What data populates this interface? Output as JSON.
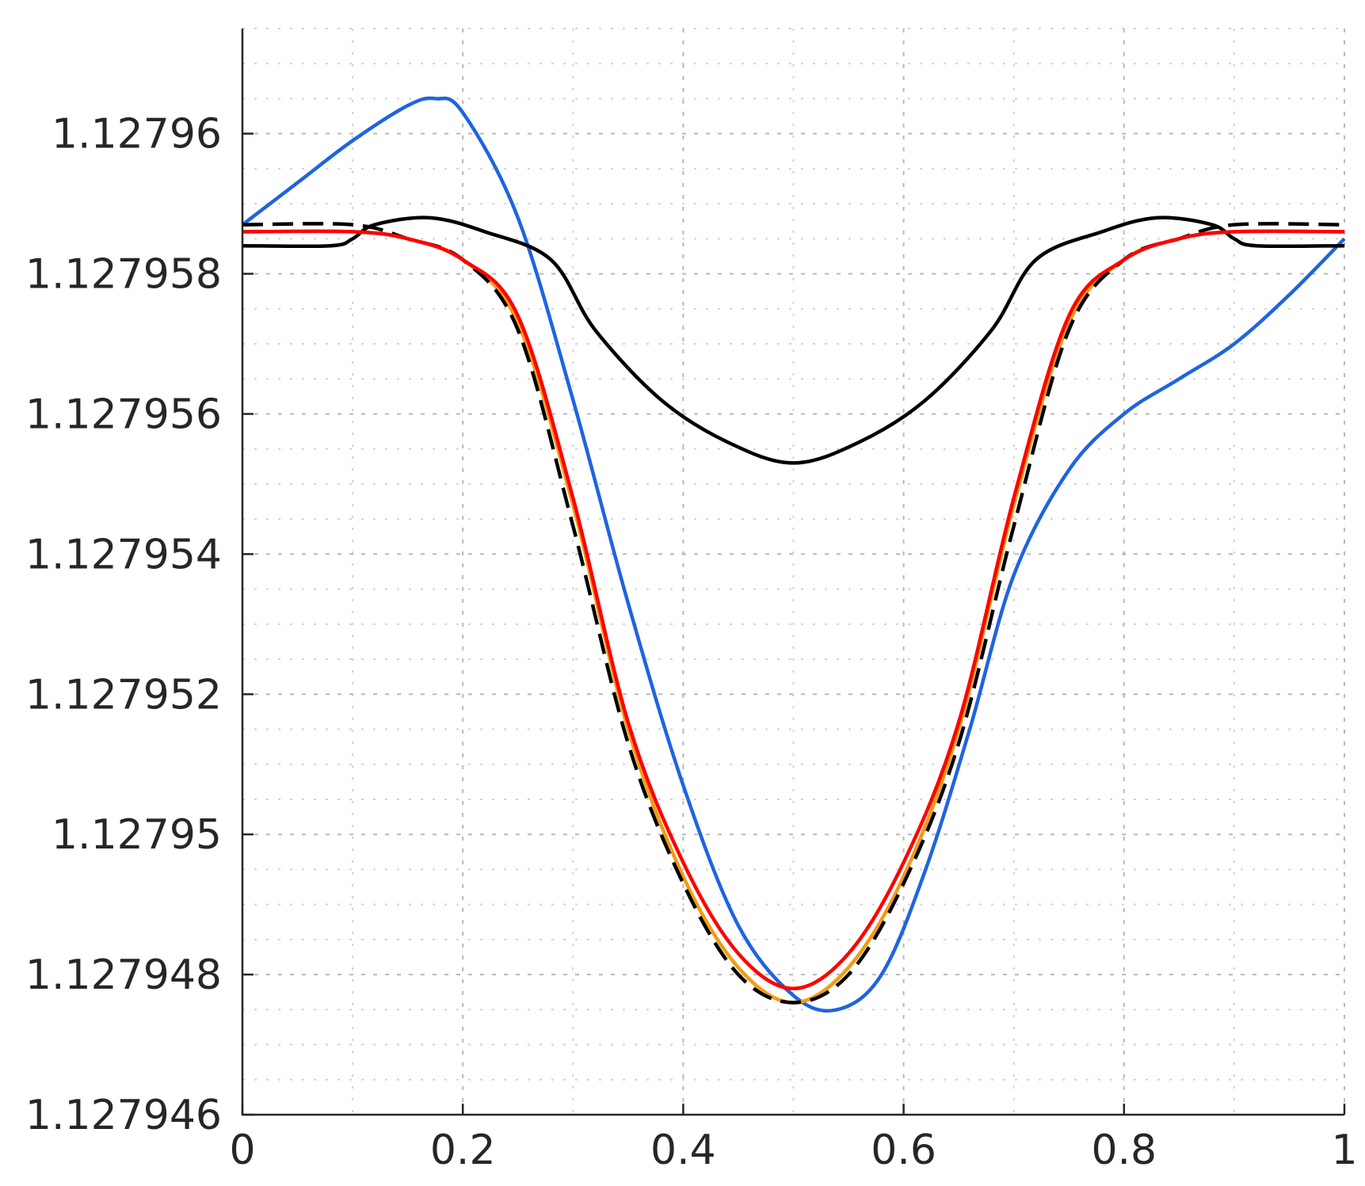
{
  "chart_data": {
    "type": "line",
    "title": "",
    "xlabel": "",
    "ylabel": "",
    "xlim": [
      0,
      1
    ],
    "ylim": [
      1.127946,
      1.1279615
    ],
    "grid": true,
    "minor_grid": true,
    "x_ticks": [
      0,
      0.2,
      0.4,
      0.6,
      0.8,
      1
    ],
    "x_tick_labels": [
      "0",
      "0.2",
      "0.4",
      "0.6",
      "0.8",
      "1"
    ],
    "y_ticks": [
      1.127946,
      1.127948,
      1.12795,
      1.127952,
      1.127954,
      1.127956,
      1.127958,
      1.12796
    ],
    "y_tick_labels": [
      "1.127946",
      "1.127948",
      "1.12795",
      "1.127952",
      "1.127954",
      "1.127956",
      "1.127958",
      "1.12796"
    ],
    "series": [
      {
        "color": "#1f64e0",
        "dash": "solid",
        "x": [
          0,
          0.05,
          0.1,
          0.15,
          0.175,
          0.2,
          0.25,
          0.3,
          0.35,
          0.4,
          0.45,
          0.5,
          0.54,
          0.58,
          0.62,
          0.66,
          0.7,
          0.75,
          0.8,
          0.85,
          0.9,
          0.95,
          1
        ],
        "y": [
          1.1279587,
          1.1279593,
          1.1279599,
          1.1279604,
          1.1279605,
          1.1279603,
          1.1279588,
          1.1279562,
          1.1279533,
          1.1279507,
          1.1279487,
          1.1279477,
          1.1279475,
          1.127948,
          1.1279495,
          1.1279515,
          1.1279537,
          1.1279552,
          1.127956,
          1.1279565,
          1.127957,
          1.1279577,
          1.1279585
        ]
      },
      {
        "color": "#000000",
        "dash": "solid",
        "x": [
          0,
          0.08,
          0.1,
          0.12,
          0.17,
          0.22,
          0.28,
          0.32,
          0.38,
          0.44,
          0.5,
          0.56,
          0.62,
          0.68,
          0.72,
          0.78,
          0.83,
          0.88,
          0.9,
          0.92,
          1
        ],
        "y": [
          1.1279584,
          1.1279584,
          1.1279585,
          1.1279587,
          1.1279588,
          1.1279586,
          1.1279582,
          1.1279572,
          1.1279562,
          1.1279556,
          1.1279553,
          1.1279556,
          1.1279562,
          1.1279572,
          1.1279582,
          1.1279586,
          1.1279588,
          1.1279587,
          1.1279585,
          1.1279584,
          1.1279584
        ]
      },
      {
        "color": "#f39c12",
        "dash": "solid",
        "x": [
          0,
          0.1,
          0.15,
          0.2,
          0.25,
          0.3,
          0.35,
          0.4,
          0.45,
          0.5,
          0.55,
          0.6,
          0.65,
          0.7,
          0.75,
          0.8,
          0.85,
          0.9,
          1
        ],
        "y": [
          1.1279586,
          1.1279586,
          1.1279585,
          1.1279582,
          1.1279573,
          1.1279547,
          1.1279515,
          1.1279494,
          1.1279481,
          1.1279476,
          1.1279481,
          1.1279494,
          1.1279515,
          1.1279547,
          1.1279573,
          1.1279582,
          1.1279585,
          1.1279586,
          1.1279586
        ]
      },
      {
        "color": "#000000",
        "dash": "dashed",
        "x": [
          0,
          0.1,
          0.15,
          0.2,
          0.25,
          0.3,
          0.35,
          0.4,
          0.45,
          0.5,
          0.55,
          0.6,
          0.65,
          0.7,
          0.75,
          0.8,
          0.85,
          0.9,
          1
        ],
        "y": [
          1.1279587,
          1.1279587,
          1.1279585,
          1.1279582,
          1.1279572,
          1.1279544,
          1.1279513,
          1.1279493,
          1.127948,
          1.1279476,
          1.127948,
          1.1279493,
          1.1279513,
          1.1279544,
          1.1279572,
          1.1279582,
          1.1279585,
          1.1279587,
          1.1279587
        ]
      },
      {
        "color": "#ff0000",
        "dash": "solid",
        "x": [
          0,
          0.1,
          0.15,
          0.2,
          0.25,
          0.3,
          0.35,
          0.4,
          0.45,
          0.5,
          0.55,
          0.6,
          0.65,
          0.7,
          0.75,
          0.8,
          0.85,
          0.9,
          1
        ],
        "y": [
          1.1279586,
          1.1279586,
          1.1279585,
          1.1279582,
          1.1279574,
          1.1279548,
          1.1279516,
          1.1279496,
          1.1279483,
          1.1279478,
          1.1279483,
          1.1279496,
          1.1279516,
          1.1279548,
          1.1279574,
          1.1279582,
          1.1279585,
          1.1279586,
          1.1279586
        ]
      }
    ]
  }
}
